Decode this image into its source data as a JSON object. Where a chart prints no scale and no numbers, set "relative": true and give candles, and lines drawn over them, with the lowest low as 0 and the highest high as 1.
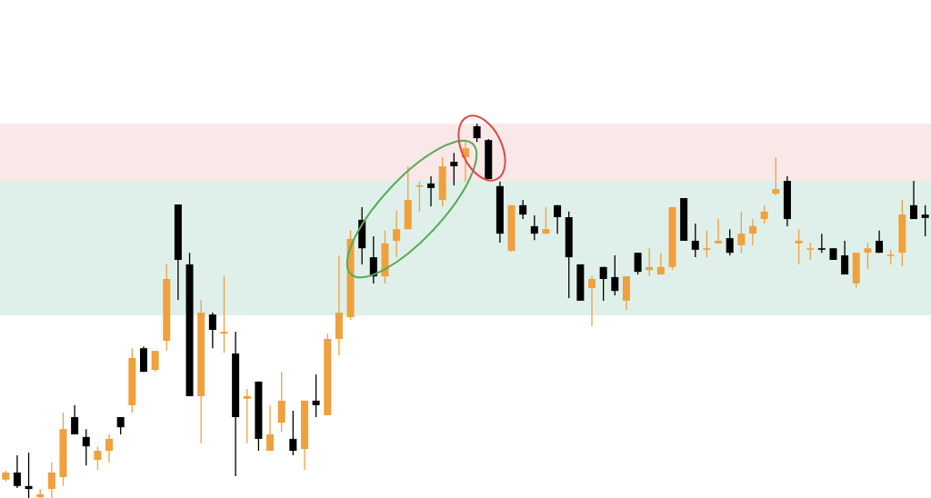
{
  "chart_data": {
    "type": "candlestick",
    "relative": true,
    "tick_labels": false,
    "categories": [
      null,
      null,
      null,
      null,
      null,
      null,
      null,
      null,
      null,
      null,
      null,
      null,
      null,
      null,
      null,
      null,
      null,
      null,
      null,
      null,
      null,
      null,
      null,
      null,
      null,
      null,
      null,
      null,
      null,
      null,
      null,
      null,
      null,
      null,
      null,
      null,
      null,
      null,
      null,
      null,
      null,
      null,
      null,
      null,
      null,
      null,
      null,
      null,
      null,
      null,
      null,
      null,
      null,
      null,
      null,
      null,
      null,
      null,
      null,
      null,
      null,
      null,
      null,
      null,
      null,
      null,
      null,
      null,
      null,
      null,
      null,
      null,
      null,
      null,
      null,
      null,
      null,
      null,
      null,
      null,
      null
    ],
    "ohlc": [
      [
        0.049,
        0.073,
        0.044,
        0.068
      ],
      [
        0.068,
        0.114,
        0.027,
        0.032
      ],
      [
        0.032,
        0.121,
        0,
        0.024
      ],
      [
        0.002,
        0.024,
        0,
        0.01
      ],
      [
        0.024,
        0.095,
        0,
        0.068
      ],
      [
        0.056,
        0.228,
        0.032,
        0.184
      ],
      [
        0.216,
        0.248,
        0.17,
        0.17
      ],
      [
        0.163,
        0.184,
        0.087,
        0.138
      ],
      [
        0.102,
        0.138,
        0.075,
        0.126
      ],
      [
        0.126,
        0.17,
        0.095,
        0.158
      ],
      [
        0.216,
        0.216,
        0.17,
        0.189
      ],
      [
        0.248,
        0.4,
        0.228,
        0.374
      ],
      [
        0.4,
        0.405,
        0.337,
        0.337
      ],
      [
        0.342,
        0.393,
        0.337,
        0.393
      ],
      [
        0.42,
        0.624,
        0.393,
        0.585
      ],
      [
        0.784,
        0.784,
        0.529,
        0.636
      ],
      [
        0.624,
        0.655,
        0.272,
        0.272
      ],
      [
        0.272,
        0.529,
        0.146,
        0.495
      ],
      [
        0.49,
        0.495,
        0.4,
        0.449
      ],
      [
        0.439,
        0.592,
        0.388,
        0.444
      ],
      [
        0.386,
        0.444,
        0.058,
        0.216
      ],
      [
        0.265,
        0.291,
        0.146,
        0.272
      ],
      [
        0.311,
        0.311,
        0.126,
        0.158
      ],
      [
        0.126,
        0.248,
        0.126,
        0.17
      ],
      [
        0.201,
        0.337,
        0.177,
        0.26
      ],
      [
        0.158,
        0.233,
        0.114,
        0.126
      ],
      [
        0.131,
        0.26,
        0.075,
        0.26
      ],
      [
        0.26,
        0.33,
        0.216,
        0.248
      ],
      [
        0.221,
        0.439,
        0.221,
        0.425
      ],
      [
        0.425,
        0.648,
        0.381,
        0.495
      ],
      [
        0.483,
        0.716,
        0.476,
        0.692
      ],
      [
        0.743,
        0.777,
        0.624,
        0.667
      ],
      [
        0.643,
        0.699,
        0.573,
        0.592
      ],
      [
        0.592,
        0.714,
        0.573,
        0.68
      ],
      [
        0.687,
        0.769,
        0.643,
        0.718
      ],
      [
        0.718,
        0.886,
        0.718,
        0.796
      ],
      [
        0.833,
        0.845,
        0.765,
        0.835
      ],
      [
        0.84,
        0.859,
        0.779,
        0.828
      ],
      [
        0.796,
        0.91,
        0.779,
        0.886
      ],
      [
        0.898,
        0.922,
        0.835,
        0.886
      ],
      [
        0.91,
        0.954,
        0.845,
        0.934
      ],
      [
        0.993,
        1.0,
        0.951,
        0.961
      ],
      [
        0.956,
        0.959,
        0.852,
        0.852
      ],
      [
        0.833,
        0.845,
        0.682,
        0.706
      ],
      [
        0.66,
        0.782,
        0.658,
        0.782
      ],
      [
        0.782,
        0.796,
        0.745,
        0.757
      ],
      [
        0.726,
        0.755,
        0.689,
        0.706
      ],
      [
        0.706,
        0.777,
        0.706,
        0.718
      ],
      [
        0.782,
        0.782,
        0.706,
        0.75
      ],
      [
        0.75,
        0.765,
        0.534,
        0.643
      ],
      [
        0.624,
        0.624,
        0.527,
        0.527
      ],
      [
        0.561,
        0.592,
        0.459,
        0.585
      ],
      [
        0.617,
        0.617,
        0.527,
        0.585
      ],
      [
        0.59,
        0.648,
        0.541,
        0.553
      ],
      [
        0.527,
        0.592,
        0.502,
        0.592
      ],
      [
        0.655,
        0.655,
        0.597,
        0.604
      ],
      [
        0.609,
        0.667,
        0.592,
        0.617
      ],
      [
        0.597,
        0.655,
        0.597,
        0.617
      ],
      [
        0.617,
        0.777,
        0.609,
        0.777
      ],
      [
        0.801,
        0.801,
        0.687,
        0.687
      ],
      [
        0.687,
        0.733,
        0.643,
        0.663
      ],
      [
        0.663,
        0.714,
        0.643,
        0.667
      ],
      [
        0.68,
        0.745,
        0.68,
        0.687
      ],
      [
        0.694,
        0.718,
        0.648,
        0.655
      ],
      [
        0.675,
        0.765,
        0.655,
        0.706
      ],
      [
        0.706,
        0.745,
        0.675,
        0.726
      ],
      [
        0.745,
        0.782,
        0.733,
        0.765
      ],
      [
        0.813,
        0.91,
        0.808,
        0.825
      ],
      [
        0.847,
        0.859,
        0.726,
        0.745
      ],
      [
        0.68,
        0.718,
        0.624,
        0.687
      ],
      [
        0.665,
        0.682,
        0.636,
        0.667
      ],
      [
        0.667,
        0.706,
        0.655,
        0.663
      ],
      [
        0.667,
        0.667,
        0.636,
        0.636
      ],
      [
        0.648,
        0.687,
        0.597,
        0.597
      ],
      [
        0.573,
        0.655,
        0.561,
        0.655
      ],
      [
        0.655,
        0.682,
        0.612,
        0.667
      ],
      [
        0.687,
        0.714,
        0.655,
        0.655
      ],
      [
        0.648,
        0.663,
        0.624,
        0.65
      ],
      [
        0.655,
        0.796,
        0.619,
        0.757
      ],
      [
        0.782,
        0.847,
        0.745,
        0.745
      ],
      [
        0.757,
        0.782,
        0.699,
        0.748
      ]
    ],
    "colors": [
      "#f0a03c",
      "#000000",
      "#000000",
      "#f0a03c",
      "#f0a03c",
      "#f0a03c",
      "#000000",
      "#000000",
      "#f0a03c",
      "#f0a03c",
      "#000000",
      "#f0a03c",
      "#000000",
      "#f0a03c",
      "#f0a03c",
      "#000000",
      "#000000",
      "#f0a03c",
      "#000000",
      "#f0a03c",
      "#000000",
      "#f0a03c",
      "#000000",
      "#f0a03c",
      "#f0a03c",
      "#000000",
      "#f0a03c",
      "#000000",
      "#f0a03c",
      "#f0a03c",
      "#f0a03c",
      "#000000",
      "#000000",
      "#f0a03c",
      "#f0a03c",
      "#f0a03c",
      "#f0a03c",
      "#000000",
      "#f0a03c",
      "#000000",
      "#f0a03c",
      "#000000",
      "#000000",
      "#000000",
      "#f0a03c",
      "#000000",
      "#000000",
      "#f0a03c",
      "#000000",
      "#000000",
      "#000000",
      "#f0a03c",
      "#000000",
      "#000000",
      "#f0a03c",
      "#000000",
      "#f0a03c",
      "#f0a03c",
      "#f0a03c",
      "#000000",
      "#000000",
      "#f0a03c",
      "#f0a03c",
      "#000000",
      "#f0a03c",
      "#f0a03c",
      "#f0a03c",
      "#f0a03c",
      "#000000",
      "#f0a03c",
      "#f0a03c",
      "#000000",
      "#000000",
      "#000000",
      "#f0a03c",
      "#f0a03c",
      "#000000",
      "#f0a03c",
      "#f0a03c",
      "#000000",
      "#000000"
    ],
    "bands": [
      {
        "axis": "y",
        "from": 0.847,
        "to": 1.0,
        "color": "#f9e8e8"
      },
      {
        "axis": "y",
        "from": 0.488,
        "to": 0.847,
        "color": "#dff0eb"
      }
    ]
  }
}
